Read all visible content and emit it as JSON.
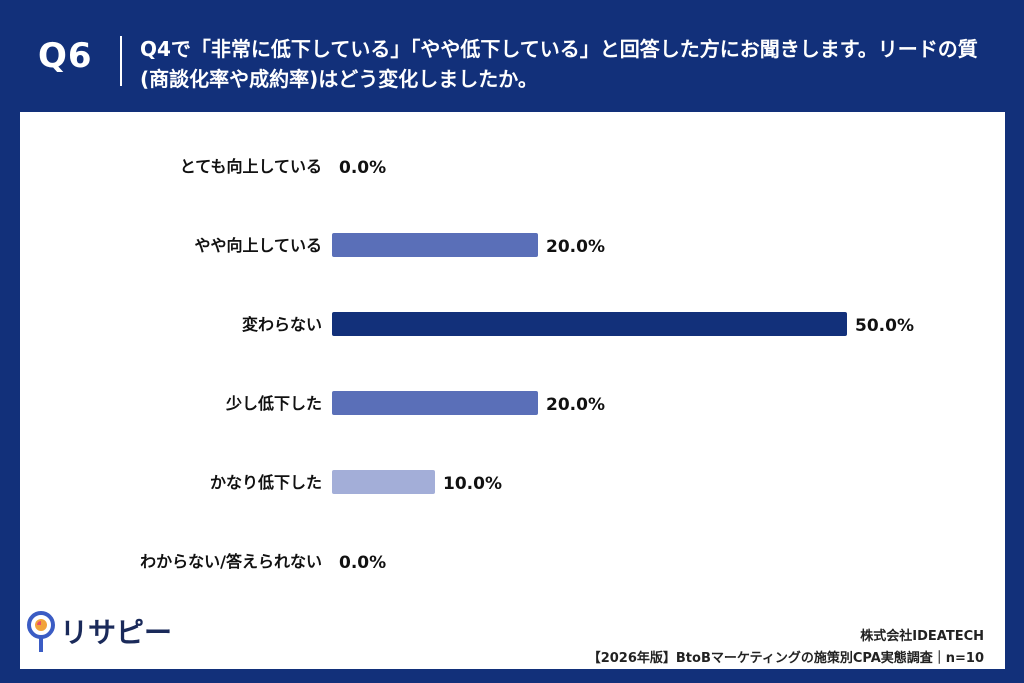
{
  "header": {
    "question_number": "Q6",
    "question_text": "Q4で「非常に低下している」「やや低下している」と回答した方にお聞きします。リードの質(商談化率や成約率)はどう変化しましたか。"
  },
  "chart_data": {
    "type": "bar",
    "orientation": "horizontal",
    "categories": [
      "とても向上している",
      "やや向上している",
      "変わらない",
      "少し低下した",
      "かなり低下した",
      "わからない/答えられない"
    ],
    "values": [
      0.0,
      20.0,
      50.0,
      20.0,
      10.0,
      0.0
    ],
    "value_labels": [
      "0.0%",
      "20.0%",
      "50.0%",
      "20.0%",
      "10.0%",
      "0.0%"
    ],
    "bar_colors": [
      "#5a6fb8",
      "#5a6fb8",
      "#12307a",
      "#5a6fb8",
      "#a3aed8",
      "#5a6fb8"
    ],
    "xlim": [
      0,
      50
    ],
    "grid": false
  },
  "branding": {
    "logo_text": "リサピー"
  },
  "footer": {
    "company": "株式会社IDEATECH",
    "source": "【2026年版】BtoBマーケティングの施策別CPA実態調査｜n=10"
  },
  "colors": {
    "background": "#12307a",
    "card": "#ffffff",
    "logo_ring": "#3b5cc4",
    "logo_accent": "#f2a33a"
  }
}
